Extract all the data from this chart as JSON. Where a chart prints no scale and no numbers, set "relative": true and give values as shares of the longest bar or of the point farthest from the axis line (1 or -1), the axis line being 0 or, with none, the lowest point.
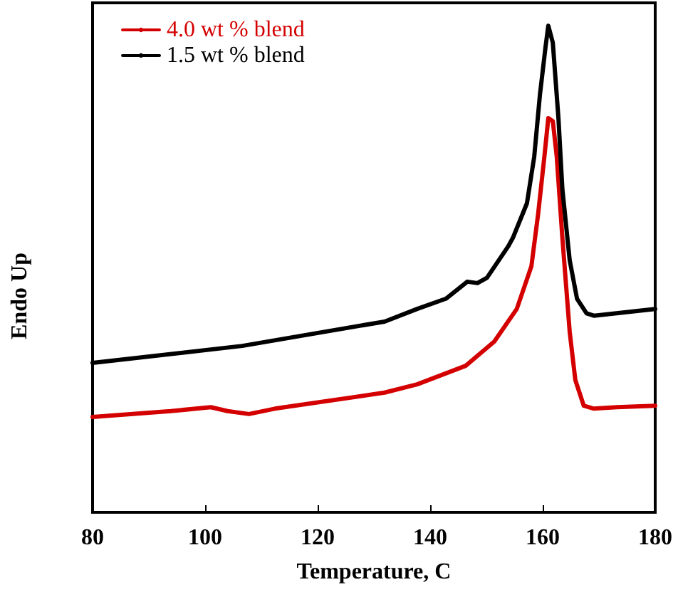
{
  "chart_data": {
    "type": "line",
    "relative": true,
    "xlabel": "Temperature, C",
    "ylabel": "Endo Up",
    "xlim": [
      80,
      180
    ],
    "xticks": [
      80,
      100,
      120,
      140,
      160,
      180
    ],
    "grid": false,
    "legend": "top left",
    "line_style": "solid",
    "marker": "none",
    "series": [
      {
        "name": "4.0 wt % blend",
        "color": "#d40000",
        "x": [
          80,
          93.9,
          101,
          104,
          107.8,
          112.4,
          131.9,
          137.7,
          146.3,
          151.4,
          155.4,
          158,
          159.2,
          160.3,
          161,
          161.8,
          162.5,
          163.5,
          164.8,
          165.8,
          167.3,
          169.1,
          173.2,
          180
        ],
        "values": [
          0.196,
          0.208,
          0.216,
          0.208,
          0.202,
          0.213,
          0.246,
          0.263,
          0.301,
          0.351,
          0.418,
          0.506,
          0.614,
          0.731,
          0.81,
          0.804,
          0.731,
          0.564,
          0.371,
          0.272,
          0.219,
          0.213,
          0.216,
          0.219
        ]
      },
      {
        "name": "1.5 wt % blend",
        "color": "#000000",
        "x": [
          80,
          106.6,
          131.9,
          137.7,
          142.8,
          145.3,
          146.6,
          148.4,
          150.1,
          153.9,
          154.7,
          157.2,
          158.5,
          159.5,
          160.5,
          161,
          161.8,
          162.8,
          163.5,
          164.8,
          166.1,
          167.8,
          169.1,
          180
        ],
        "values": [
          0.307,
          0.342,
          0.392,
          0.418,
          0.439,
          0.462,
          0.474,
          0.471,
          0.482,
          0.547,
          0.564,
          0.635,
          0.731,
          0.857,
          0.956,
          1,
          0.965,
          0.81,
          0.664,
          0.518,
          0.439,
          0.409,
          0.404,
          0.418
        ]
      }
    ]
  }
}
